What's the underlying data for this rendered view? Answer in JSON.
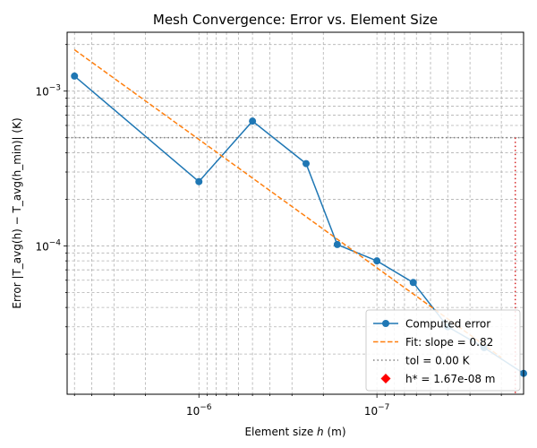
{
  "chart_data": {
    "type": "line",
    "title": "Mesh Convergence: Error vs. Element Size",
    "xlabel_prefix": "Element size ",
    "xlabel_var": "h",
    "xlabel_suffix": " (m)",
    "ylabel": "Error |T_avg(h) − T_avg(h_min)| (K)",
    "x_scale": "log",
    "y_scale": "log",
    "x_inverted": true,
    "xlim": [
      5.5e-06,
      1.5e-08
    ],
    "ylim": [
      1.1e-05,
      0.0024
    ],
    "x_ticks": [
      {
        "value": 1e-06,
        "base": "10",
        "exp": "−6"
      },
      {
        "value": 1e-07,
        "base": "10",
        "exp": "−7"
      }
    ],
    "y_ticks": [
      {
        "value": 0.001,
        "base": "10",
        "exp": "−3"
      },
      {
        "value": 0.0001,
        "base": "10",
        "exp": "−4"
      }
    ],
    "grid": true,
    "series": [
      {
        "name": "Computed error",
        "color": "#1f77b4",
        "style": "solid",
        "marker": "circle",
        "x": [
          5e-06,
          1e-06,
          5e-07,
          2.5e-07,
          1.67e-07,
          1e-07,
          6.25e-08,
          4e-08,
          2.5e-08,
          1.5e-08
        ],
        "y": [
          0.00125,
          0.00026,
          0.00064,
          0.00034,
          0.000102,
          8e-05,
          5.8e-05,
          3e-05,
          2.2e-05,
          1.5e-05
        ]
      },
      {
        "name": "Fit: slope = 0.82",
        "color": "#ff7f0e",
        "style": "dashed",
        "x": [
          5e-06,
          2e-08
        ],
        "y": [
          0.00185,
          1.9e-05
        ]
      }
    ],
    "hline": {
      "name": "tol = 0.00 K",
      "y": 0.0005,
      "color": "#808080",
      "style": "dotted"
    },
    "vline": {
      "x": 1.67e-08,
      "y_top": 0.0005,
      "color": "#d62728",
      "style": "dotted"
    },
    "marker_point": {
      "name": "h* = 1.67e-08 m",
      "x": 1.67e-08,
      "y": 0.0005,
      "color": "#ff0000",
      "marker": "diamond",
      "visible": false
    },
    "legend_position": "lower-right",
    "legend": [
      {
        "label": "Computed error",
        "kind": "line-marker",
        "color": "#1f77b4"
      },
      {
        "label": "Fit: slope = 0.82",
        "kind": "dashed",
        "color": "#ff7f0e"
      },
      {
        "label": "tol = 0.00 K",
        "kind": "dotted",
        "color": "#808080"
      },
      {
        "label": "h* = 1.67e-08 m",
        "kind": "diamond",
        "color": "#ff0000"
      }
    ]
  }
}
